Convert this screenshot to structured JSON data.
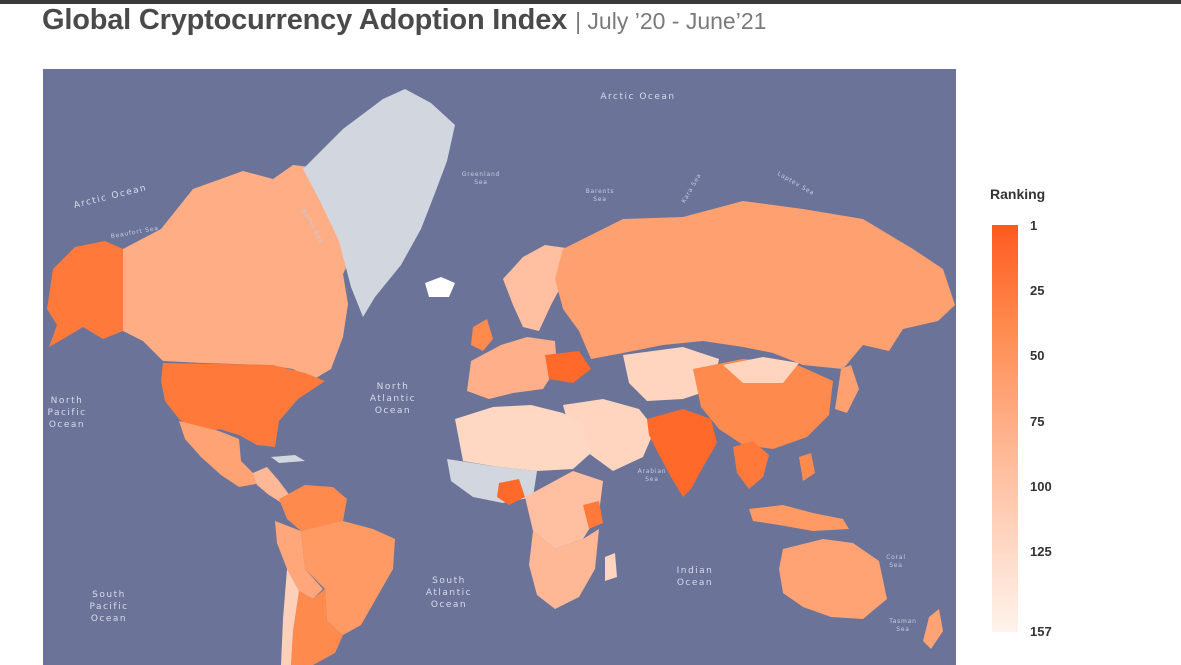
{
  "title": "Global Cryptocurrency Adoption Index",
  "subtitle": "| July ’20 - June’21",
  "legend": {
    "title": "Ranking",
    "ticks": [
      "1",
      "25",
      "50",
      "75",
      "100",
      "125",
      "157"
    ],
    "scale": {
      "min": 1,
      "max": 157,
      "min_color": "#ff5a1f",
      "max_color": "#fff3ec"
    }
  },
  "map": {
    "ocean_color": "#6b7398",
    "no_data_color": "#d2d6df",
    "oceans": {
      "arctic_top": "Arctic Ocean",
      "arctic_left": "Arctic Ocean",
      "north_pacific": [
        "North",
        "Pacific",
        "Ocean"
      ],
      "north_atlantic": [
        "North",
        "Atlantic",
        "Ocean"
      ],
      "south_atlantic": [
        "South",
        "Atlantic",
        "Ocean"
      ],
      "south_pacific": [
        "South",
        "Pacific",
        "Ocean"
      ],
      "indian": [
        "Indian",
        "Ocean"
      ]
    },
    "seas": {
      "beaufort": "Beaufort Sea",
      "baffin": "Baffin Bay",
      "greenland": [
        "Greenland",
        "Sea"
      ],
      "barents": [
        "Barents",
        "Sea"
      ],
      "kara": "Kara Sea",
      "laptev": "Laptev Sea",
      "arabian": [
        "Arabian",
        "Sea"
      ],
      "coral": [
        "Coral",
        "Sea"
      ],
      "tasman": [
        "Tasman",
        "Sea"
      ]
    }
  }
}
